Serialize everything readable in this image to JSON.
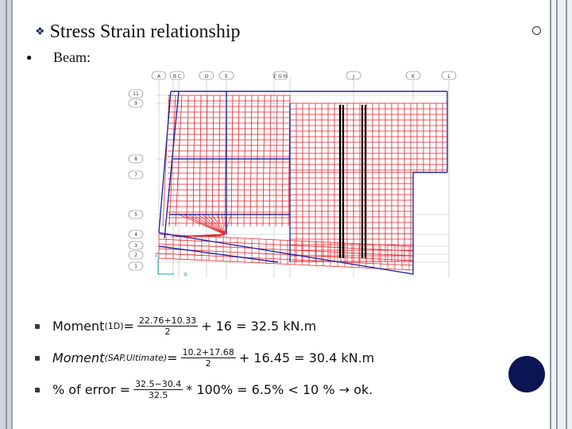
{
  "title": "Stress Strain relationship",
  "subtitle": "Beam:",
  "grid_top_labels": [
    "A",
    "B C",
    "D",
    "E",
    "F G H",
    "J",
    "K",
    "L"
  ],
  "grid_left_labels": [
    "11",
    "9",
    "8",
    "7",
    "5",
    "4",
    "3",
    "2",
    "1"
  ],
  "axis_labels": [
    "Z",
    "X"
  ],
  "equations": [
    {
      "lhs_main": "Moment",
      "lhs_sub": "(1D)",
      "lhs_eq": "=",
      "num": "22.76+10.33",
      "den": "2",
      "rhs": "+ 16 = 32.5 kN.m"
    },
    {
      "lhs_main": "Moment",
      "lhs_sub": "(SAP,Ultimate)",
      "lhs_eq": "=",
      "num": "10.2+17.68",
      "den": "2",
      "rhs": "+ 16.45 = 30.4 kN.m"
    },
    {
      "lhs_main": "% of error =",
      "lhs_sub": "",
      "lhs_eq": "",
      "num": "32.5−30.4",
      "den": "32.5",
      "rhs": "* 100% = 6.5% < 10 % → ok."
    }
  ],
  "colors": {
    "mesh": "#e2232a",
    "frame": "#1f2aa8",
    "accent": "#0c1554"
  }
}
